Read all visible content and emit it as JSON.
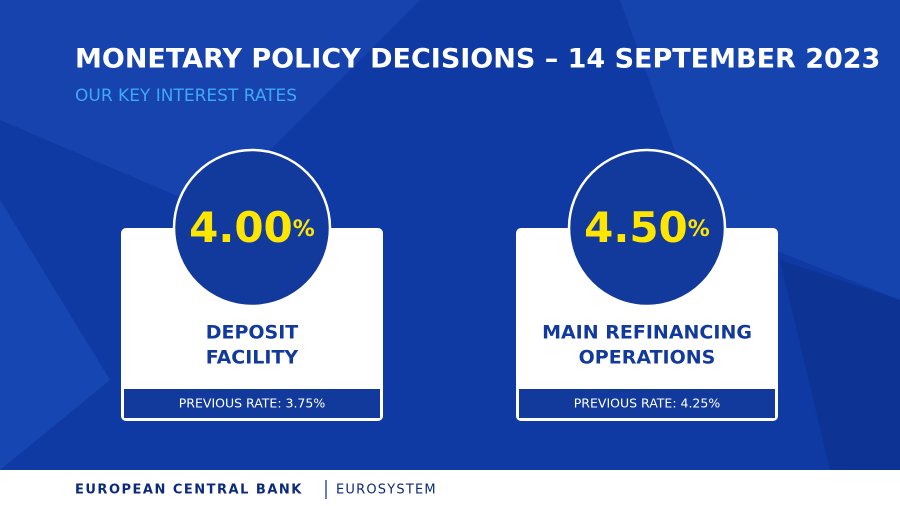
{
  "header": {
    "title": "MONETARY POLICY DECISIONS – 14 SEPTEMBER 2023",
    "subtitle": "OUR KEY INTEREST RATES"
  },
  "cards": [
    {
      "rate": "4.00",
      "unit": "%",
      "label_lines": [
        "DEPOSIT",
        "FACILITY"
      ],
      "previous": "PREVIOUS RATE: 3.75%"
    },
    {
      "rate": "4.50",
      "unit": "%",
      "label_lines": [
        "MAIN REFINANCING",
        "OPERATIONS"
      ],
      "previous": "PREVIOUS RATE: 4.25%"
    }
  ],
  "footer": {
    "brand": "EUROPEAN CENTRAL BANK",
    "system": "EUROSYSTEM"
  }
}
